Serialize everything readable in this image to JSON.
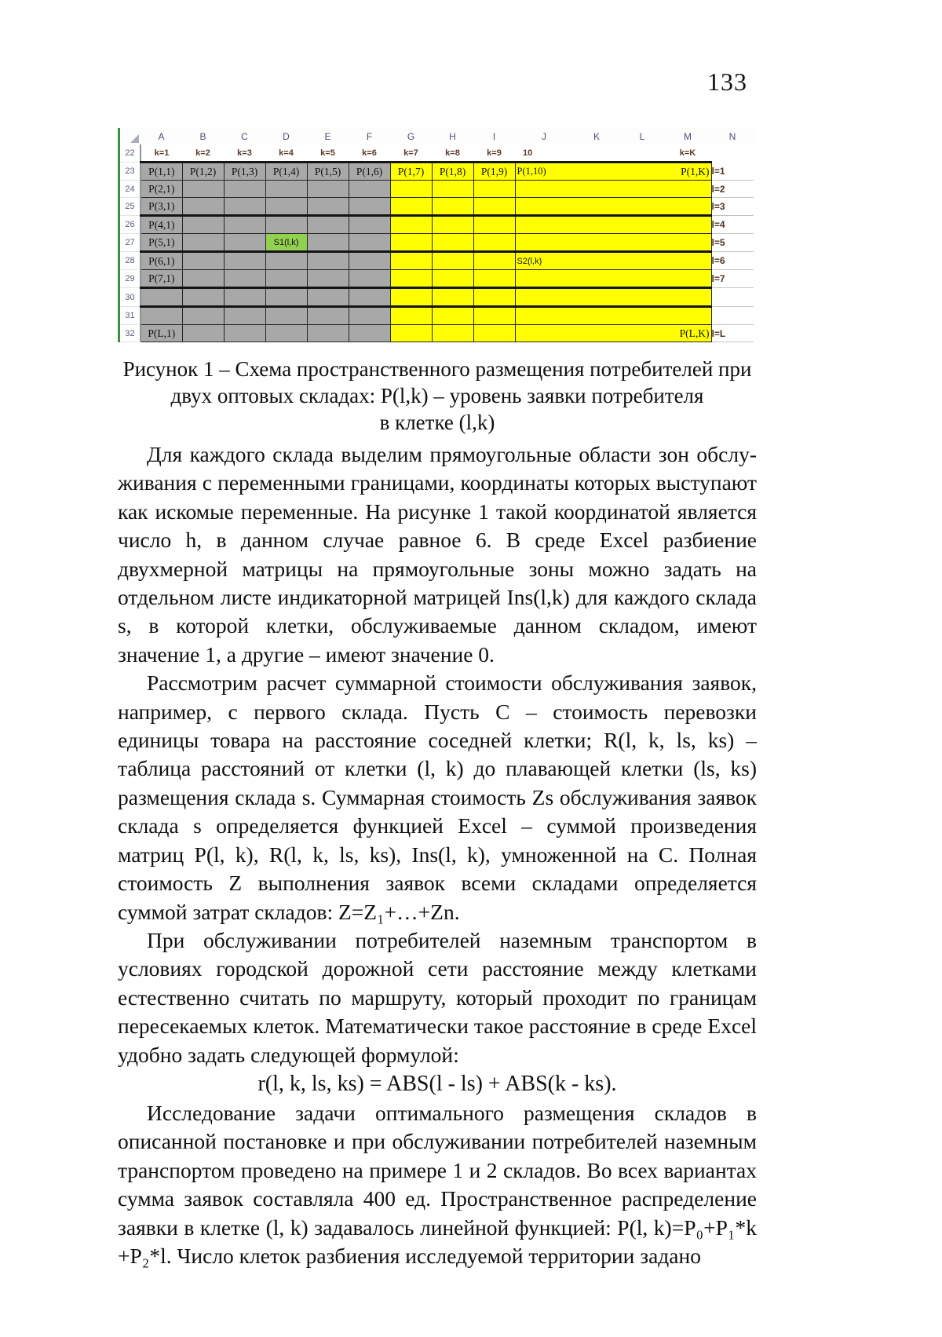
{
  "page": {
    "number": "133"
  },
  "figure": {
    "column_letters": [
      "A",
      "B",
      "C",
      "D",
      "E",
      "F",
      "G",
      "H",
      "I",
      "J",
      "K",
      "L",
      "M",
      "N"
    ],
    "k_row_num": "22",
    "k_labels": [
      "k=1",
      "k=2",
      "k=3",
      "k=4",
      "k=5",
      "k=6",
      "k=7",
      "k=8",
      "k=9",
      "10",
      "",
      "",
      "k=K",
      ""
    ],
    "rows": [
      {
        "num": "23",
        "cells": [
          "P(1,1)",
          "P(1,2)",
          "P(1,3)",
          "P(1,4)",
          "P(1,5)",
          "P(1,6)",
          "P(1,7)",
          "P(1,8)",
          "P(1,9)"
        ],
        "wide_left": "P(1,10)",
        "wide_right": "P(1,K)",
        "n": "l=1",
        "first": true
      },
      {
        "num": "24",
        "cells": [
          "P(2,1)",
          "",
          "",
          "",
          "",
          "",
          "",
          "",
          ""
        ],
        "wide_left": "",
        "wide_right": "",
        "n": "l=2"
      },
      {
        "num": "25",
        "cells": [
          "P(3,1)",
          "",
          "",
          "",
          "",
          "",
          "",
          "",
          ""
        ],
        "wide_left": "",
        "wide_right": "",
        "n": "l=3",
        "thick": true
      },
      {
        "num": "26",
        "cells": [
          "P(4,1)",
          "",
          "",
          "",
          "",
          "",
          "",
          "",
          ""
        ],
        "wide_left": "",
        "wide_right": "",
        "n": "l=4"
      },
      {
        "num": "27",
        "cells": [
          "P(5,1)",
          "",
          "",
          "S1(l,k)",
          "",
          "",
          "",
          "",
          ""
        ],
        "green": 3,
        "wide_left": "",
        "wide_right": "",
        "n": "l=5",
        "thick": true
      },
      {
        "num": "28",
        "cells": [
          "P(6,1)",
          "",
          "",
          "",
          "",
          "",
          "",
          "",
          ""
        ],
        "wide_left": "S2(l,k)",
        "wide_right": "",
        "n": "l=6"
      },
      {
        "num": "29",
        "cells": [
          "P(7,1)",
          "",
          "",
          "",
          "",
          "",
          "",
          "",
          ""
        ],
        "wide_left": "",
        "wide_right": "",
        "n": "l=7",
        "thick": true
      },
      {
        "num": "30",
        "cells": [
          "",
          "",
          "",
          "",
          "",
          "",
          "",
          "",
          ""
        ],
        "wide_left": "",
        "wide_right": "",
        "n": "",
        "thick": true
      },
      {
        "num": "31",
        "cells": [
          "",
          "",
          "",
          "",
          "",
          "",
          "",
          "",
          ""
        ],
        "wide_left": "",
        "wide_right": "",
        "n": ""
      },
      {
        "num": "32",
        "cells": [
          "P(L,1)",
          "",
          "",
          "",
          "",
          "",
          "",
          "",
          ""
        ],
        "wide_left": "",
        "wide_right": "P(L,K)",
        "n": "l=L"
      }
    ],
    "colors": {
      "zone1_fill": "#a8a8a8",
      "zone2_fill": "#ffff00",
      "s1_fill": "#92d050",
      "sheet_edge": "#3f8f46"
    }
  },
  "caption": {
    "line1": "Рисунок 1 – Схема пространственного размещения потребителей при",
    "line2": "двух оптовых складах: P(l,k) – уровень заявки потребителя",
    "line3": "в клетке (l,k)"
  },
  "paragraphs": {
    "p1": "Для каждого склада выделим прямоугольные области зон обслу-живания с переменными границами, координаты которых выступают как искомые переменные. На рисунке 1 такой координатой является число h, в данном случае равное 6. В среде Excel разбиение двухмерной матрицы на прямоугольные зоны можно задать на отдельном листе индикаторной матрицей Ins(l,k) для каждого склада s, в которой клетки, обслуживаемые данном складом, имеют значение 1, а другие – имеют значение 0.",
    "p2": "Рассмотрим расчет суммарной стоимости обслуживания заявок, например, с первого склада. Пусть C – стоимость перевозки единицы товара на расстояние соседней клетки; R(l, k, ls, ks) – таблица расстояний от клетки (l, k) до плавающей клетки (ls, ks) размещения склада s. Суммарная стоимость Zs обслуживания заявок склада s определяется функцией Excel – суммой произведения матриц P(l, k), R(l, k, ls, ks), Ins(l, k), умноженной на C. Полная стоимость Z выполнения заявок всеми складами определяется суммой затрат складов: Z=Z₁+…+Zn.",
    "p3": "При обслуживании потребителей наземным транспортом в условиях городской дорожной сети расстояние между клетками естественно считать по маршруту, который проходит по границам пересекаемых клеток. Математически такое расстояние в среде Excel удобно задать следующей формулой:",
    "formula": "r(l, k, ls, ks) = ABS(l - ls) + ABS(k - ks).",
    "p4": "Исследование задачи оптимального размещения складов в описанной постановке и при обслуживании потребителей наземным транспортом проведено на примере 1 и 2 складов. Во всех вариантах сумма заявок составляла 400 ед. Пространственное распределение заявки в клетке (l, k) задавалось линейной функцией: P(l, k)=P₀+P₁*k +P₂*l. Число клеток разбиения исследуемой территории задано"
  }
}
